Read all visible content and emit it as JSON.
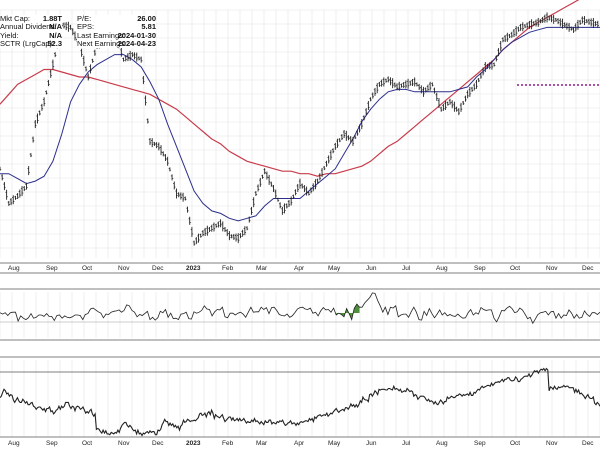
{
  "stats_left": [
    {
      "label": "Mkt Cap:",
      "value": "1.88T"
    },
    {
      "label": "Annual Dividend:",
      "value": "N/A"
    },
    {
      "label": "Yield:",
      "value": "N/A"
    },
    {
      "label": "SCTR (LrgCap):",
      "value": "52.3"
    }
  ],
  "stats_right": [
    {
      "label": "P/E:",
      "value": "26.00"
    },
    {
      "label": "EPS:",
      "value": "5.81"
    },
    {
      "label": "Last Earnings:",
      "value": "2024-01-30"
    },
    {
      "label": "Next Earnings:",
      "value": "2024-04-23"
    }
  ],
  "colors": {
    "price": "#222222",
    "ma_short": "#2b2f8c",
    "ma_long": "#c83c4c",
    "resistance": "#8b1a8b",
    "highlight_fill": "#4e8f3c",
    "grid": "#e4e4e4"
  },
  "chart_data": {
    "type": "line",
    "x_labels": [
      "Aug",
      "Sep",
      "Oct",
      "Nov",
      "Dec",
      "2023",
      "Feb",
      "Mar",
      "Apr",
      "May",
      "Jun",
      "Jul",
      "Aug",
      "Sep",
      "Oct",
      "Nov",
      "Dec"
    ],
    "series": [
      {
        "name": "",
        "panel": "price",
        "values": [
          0.36,
          0.22,
          0.25,
          0.29,
          0.54,
          0.63,
          0.78,
          0.94,
          0.93,
          0.86,
          0.73,
          0.86,
          0.88,
          0.92,
          0.8,
          0.82,
          0.8,
          0.47,
          0.45,
          0.39,
          0.26,
          0.24,
          0.06,
          0.1,
          0.12,
          0.14,
          0.09,
          0.08,
          0.12,
          0.26,
          0.35,
          0.28,
          0.19,
          0.23,
          0.3,
          0.26,
          0.31,
          0.38,
          0.45,
          0.5,
          0.47,
          0.54,
          0.64,
          0.7,
          0.72,
          0.69,
          0.7,
          0.71,
          0.67,
          0.7,
          0.6,
          0.63,
          0.59,
          0.66,
          0.7,
          0.77,
          0.78,
          0.88,
          0.9,
          0.93,
          0.94,
          0.95,
          0.97,
          0.96,
          0.94,
          0.92,
          0.96,
          0.95,
          0.94
        ]
      },
      {
        "name": "",
        "panel": "price",
        "values": [
          0.34,
          0.34,
          0.32,
          0.3,
          0.31,
          0.33,
          0.39,
          0.5,
          0.63,
          0.7,
          0.75,
          0.78,
          0.8,
          0.82,
          0.82,
          0.8,
          0.77,
          0.71,
          0.64,
          0.54,
          0.45,
          0.36,
          0.27,
          0.22,
          0.19,
          0.18,
          0.16,
          0.15,
          0.16,
          0.17,
          0.21,
          0.24,
          0.24,
          0.24,
          0.24,
          0.27,
          0.3,
          0.33,
          0.36,
          0.42,
          0.48,
          0.55,
          0.6,
          0.64,
          0.67,
          0.68,
          0.68,
          0.67,
          0.67,
          0.67,
          0.67,
          0.67,
          0.68,
          0.69,
          0.73,
          0.76,
          0.8,
          0.84,
          0.87,
          0.89,
          0.91,
          0.92,
          0.93,
          0.93,
          0.93,
          0.93,
          0.93,
          0.93,
          0.93
        ]
      },
      {
        "name": "",
        "panel": "price",
        "values": [
          0.62,
          0.66,
          0.7,
          0.72,
          0.74,
          0.76,
          0.76,
          0.75,
          0.74,
          0.73,
          0.73,
          0.72,
          0.71,
          0.7,
          0.69,
          0.68,
          0.67,
          0.66,
          0.64,
          0.62,
          0.6,
          0.57,
          0.54,
          0.51,
          0.48,
          0.46,
          0.43,
          0.41,
          0.39,
          0.38,
          0.37,
          0.36,
          0.35,
          0.35,
          0.34,
          0.34,
          0.33,
          0.34,
          0.34,
          0.35,
          0.36,
          0.37,
          0.39,
          0.42,
          0.45,
          0.47,
          0.5,
          0.53,
          0.56,
          0.59,
          0.62,
          0.65,
          0.68,
          0.71,
          0.74,
          0.77,
          0.8,
          0.84,
          0.87,
          0.9,
          0.93,
          0.95,
          0.97,
          0.99,
          1.01,
          1.03,
          1.05,
          1.07,
          1.09
        ]
      },
      {
        "name": "",
        "panel": "ratio",
        "values": [
          0.55,
          0.52,
          0.55,
          0.49,
          0.55,
          0.56,
          0.56,
          0.37,
          0.48,
          0.43,
          0.4,
          0.44,
          0.53,
          0.43,
          0.45,
          0.5,
          0.5,
          0.47,
          0.53,
          0.47,
          0.47,
          0.38,
          0.49,
          0.5,
          0.43,
          0.48,
          0.45,
          0.44,
          0.46,
          0.5,
          0.5,
          0.49,
          0.4,
          0.51,
          0.53,
          0.63,
          0.65,
          0.61,
          0.57,
          0.54,
          0.44,
          0.52,
          0.51,
          0.56,
          0.58,
          0.59,
          0.61,
          0.56,
          0.6,
          0.72,
          0.7,
          0.6,
          0.56,
          0.46,
          0.51,
          0.49,
          0.53,
          0.58,
          0.4,
          0.45,
          0.39,
          0.44,
          0.58,
          0.55,
          0.62,
          0.45,
          0.54,
          0.42,
          0.43,
          0.4,
          0.52,
          0.53,
          0.56,
          0.42,
          0.41,
          0.57,
          0.54,
          0.56,
          0.6,
          0.7,
          0.63,
          0.62,
          0.48,
          0.57,
          0.62,
          0.61,
          0.67,
          0.46,
          0.44,
          0.54,
          0.54,
          0.5,
          0.54,
          0.56,
          0.52,
          0.45,
          0.56,
          0.67,
          0.56,
          0.57,
          0.57,
          0.67,
          0.62,
          0.66,
          0.53,
          0.66,
          0.67,
          0.6,
          0.51,
          0.49,
          0.48,
          0.52,
          0.45,
          0.48,
          0.55,
          0.63,
          0.66,
          0.67,
          0.63,
          0.62,
          0.65,
          0.54,
          0.56,
          0.48,
          0.59,
          0.66,
          0.61,
          0.62,
          0.56,
          0.65,
          0.5,
          0.54,
          0.51,
          0.46,
          0.64,
          0.53,
          0.4,
          0.65,
          0.74,
          0.67,
          0.67,
          0.76,
          0.82,
          0.88,
          0.98,
          0.97,
          0.82,
          0.7,
          0.56,
          0.67,
          0.51,
          0.67,
          0.65,
          0.7,
          0.46,
          0.5,
          0.52,
          0.52,
          0.45,
          0.57,
          0.67,
          0.56,
          0.4,
          0.39,
          0.58,
          0.49,
          0.64,
          0.53,
          0.44,
          0.52,
          0.61,
          0.5,
          0.55,
          0.48,
          0.51,
          0.48,
          0.47,
          0.52,
          0.47,
          0.43,
          0.44,
          0.55,
          0.62,
          0.5,
          0.55,
          0.52,
          0.66,
          0.62,
          0.6,
          0.61,
          0.61,
          0.43,
          0.35,
          0.46,
          0.6,
          0.59,
          0.65,
          0.69,
          0.64,
          0.55,
          0.57,
          0.65,
          0.61,
          0.52,
          0.42,
          0.45,
          0.32,
          0.41,
          0.51,
          0.55,
          0.56,
          0.58,
          0.5,
          0.57,
          0.58,
          0.43,
          0.53,
          0.43,
          0.5,
          0.49,
          0.61,
          0.54,
          0.43,
          0.51,
          0.43,
          0.45,
          0.59,
          0.51,
          0.47,
          0.55,
          0.55,
          0.51,
          0.56
        ]
      },
      {
        "name": "",
        "panel": "relative",
        "values": [
          0.51,
          0.53,
          0.58,
          0.62,
          0.6,
          0.56,
          0.57,
          0.53,
          0.55,
          0.54,
          0.48,
          0.45,
          0.48,
          0.51,
          0.47,
          0.45,
          0.45,
          0.49,
          0.47,
          0.44,
          0.46,
          0.42,
          0.42,
          0.44,
          0.45,
          0.4,
          0.39,
          0.36,
          0.38,
          0.39,
          0.39,
          0.37,
          0.35,
          0.37,
          0.33,
          0.37,
          0.37,
          0.39,
          0.33,
          0.34,
          0.3,
          0.32,
          0.35,
          0.36,
          0.4,
          0.36,
          0.4,
          0.38,
          0.4,
          0.45,
          0.45,
          0.45,
          0.4,
          0.37,
          0.4,
          0.39,
          0.34,
          0.39,
          0.4,
          0.39,
          0.36,
          0.37,
          0.39,
          0.35,
          0.31,
          0.33,
          0.31,
          0.34,
          0.36,
          0.3,
          0.27,
          0.3,
          0.1,
          0.11,
          0.1,
          0.07,
          0.05,
          0.09,
          0.05,
          0.08,
          0.04,
          0.04,
          0.03,
          0.06,
          0.05,
          0.04,
          0.06,
          0.05,
          0.09,
          0.06,
          0.11,
          0.15,
          0.17,
          0.19,
          0.19,
          0.15,
          0.13,
          0.15,
          0.13,
          0.1,
          0.08,
          0.09,
          0.04,
          0.09,
          0.04,
          0.05,
          0.02,
          0.05,
          0.04,
          0.06,
          0.07,
          0.05,
          0.08,
          0.06,
          0.07,
          0.07,
          0.03,
          0.03,
          0.09,
          0.08,
          0.1,
          0.16,
          0.19,
          0.23,
          0.2,
          0.2,
          0.15,
          0.18,
          0.15,
          0.17,
          0.13,
          0.15,
          0.12,
          0.14,
          0.09,
          0.14,
          0.16,
          0.22,
          0.19,
          0.2,
          0.23,
          0.22,
          0.2,
          0.21,
          0.21,
          0.22,
          0.21,
          0.23,
          0.25,
          0.3,
          0.31,
          0.28,
          0.29,
          0.31,
          0.26,
          0.31,
          0.33,
          0.29,
          0.35,
          0.31,
          0.24,
          0.29,
          0.27,
          0.26,
          0.25,
          0.27,
          0.29,
          0.24,
          0.2,
          0.22,
          0.24,
          0.26,
          0.26,
          0.22,
          0.25,
          0.21,
          0.22,
          0.24,
          0.21,
          0.24,
          0.21,
          0.22,
          0.24,
          0.21,
          0.18,
          0.2,
          0.19,
          0.19,
          0.22,
          0.2,
          0.24,
          0.2,
          0.21,
          0.19,
          0.17,
          0.2,
          0.18,
          0.16,
          0.21,
          0.19,
          0.19,
          0.22,
          0.22,
          0.17,
          0.19,
          0.18,
          0.17,
          0.2,
          0.19,
          0.21,
          0.2,
          0.22,
          0.18,
          0.15,
          0.16,
          0.18,
          0.19,
          0.21,
          0.17,
          0.18,
          0.18,
          0.15,
          0.18,
          0.16,
          0.19,
          0.2,
          0.19,
          0.2,
          0.21,
          0.21,
          0.2,
          0.24,
          0.22,
          0.24,
          0.2,
          0.26,
          0.24,
          0.27,
          0.28,
          0.29,
          0.27,
          0.28,
          0.29,
          0.28,
          0.31,
          0.27,
          0.29,
          0.31,
          0.3,
          0.33,
          0.35,
          0.37,
          0.34,
          0.32,
          0.34,
          0.35,
          0.36,
          0.34,
          0.38,
          0.38,
          0.36,
          0.39,
          0.43,
          0.4,
          0.42,
          0.39,
          0.42,
          0.39,
          0.42,
          0.47,
          0.45,
          0.52,
          0.49,
          0.48,
          0.48,
          0.46,
          0.55,
          0.56,
          0.53,
          0.56,
          0.6,
          0.58,
          0.55,
          0.62,
          0.61,
          0.62,
          0.62,
          0.62,
          0.61,
          0.61,
          0.63,
          0.63,
          0.62,
          0.61,
          0.66,
          0.62,
          0.63,
          0.62,
          0.6,
          0.62,
          0.58,
          0.59,
          0.6,
          0.59,
          0.63,
          0.61,
          0.59,
          0.6,
          0.59,
          0.53,
          0.55,
          0.54,
          0.49,
          0.51,
          0.53,
          0.53,
          0.53,
          0.52,
          0.49,
          0.47,
          0.49,
          0.46,
          0.47,
          0.46,
          0.43,
          0.46,
          0.43,
          0.42,
          0.45,
          0.48,
          0.46,
          0.43,
          0.46,
          0.46,
          0.52,
          0.5,
          0.51,
          0.53,
          0.52,
          0.51,
          0.52,
          0.54,
          0.54,
          0.56,
          0.55,
          0.53,
          0.55,
          0.54,
          0.55,
          0.56,
          0.54,
          0.58,
          0.54,
          0.54,
          0.58,
          0.57,
          0.6,
          0.62,
          0.61,
          0.64,
          0.66,
          0.64,
          0.65,
          0.66,
          0.67,
          0.67,
          0.66,
          0.7,
          0.67,
          0.69,
          0.71,
          0.71,
          0.72,
          0.71,
          0.73,
          0.75,
          0.72,
          0.75,
          0.75,
          0.77,
          0.77,
          0.74,
          0.73,
          0.73,
          0.74,
          0.78,
          0.76,
          0.72,
          0.72,
          0.75,
          0.76,
          0.78,
          0.79,
          0.79,
          0.79,
          0.82,
          0.78,
          0.8,
          0.83,
          0.86,
          0.85,
          0.86,
          0.83,
          0.86,
          0.88,
          0.87,
          0.89,
          0.86,
          0.89,
          0.87,
          0.6,
          0.65,
          0.64,
          0.62,
          0.66,
          0.63,
          0.62,
          0.65,
          0.64,
          0.65,
          0.65,
          0.67,
          0.65,
          0.66,
          0.66,
          0.64,
          0.64,
          0.64,
          0.64,
          0.58,
          0.62,
          0.58,
          0.61,
          0.56,
          0.57,
          0.55,
          0.53,
          0.5,
          0.53,
          0.55,
          0.51,
          0.5,
          0.5,
          0.52,
          0.44,
          0.42,
          0.45,
          0.43,
          0.4
        ]
      }
    ]
  }
}
